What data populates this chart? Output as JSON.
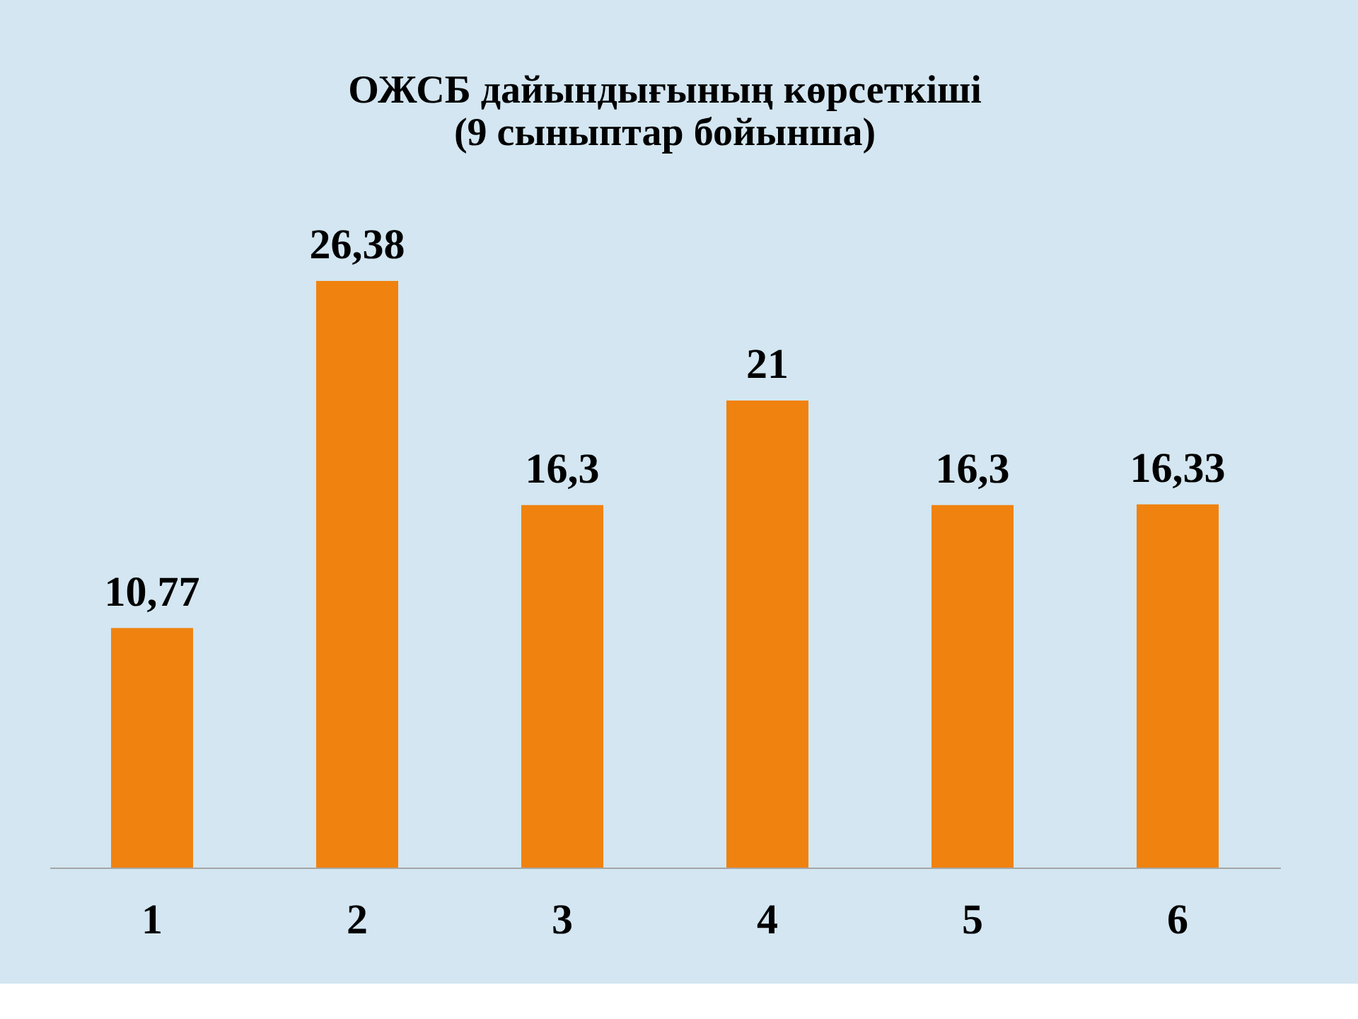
{
  "chart_data": {
    "type": "bar",
    "title": [
      "ОЖСБ дайындығының көрсеткіші",
      "(9 сыныптар бойынша)"
    ],
    "categories": [
      "1",
      "2",
      "3",
      "4",
      "5",
      "6"
    ],
    "values": [
      10.77,
      26.38,
      16.3,
      21,
      16.3,
      16.33
    ],
    "value_labels": [
      "10,77",
      "26,38",
      "16,3",
      "21",
      "16,3",
      "16,33"
    ],
    "color": "#f0820f",
    "grid": false,
    "tick_labels": "x"
  }
}
